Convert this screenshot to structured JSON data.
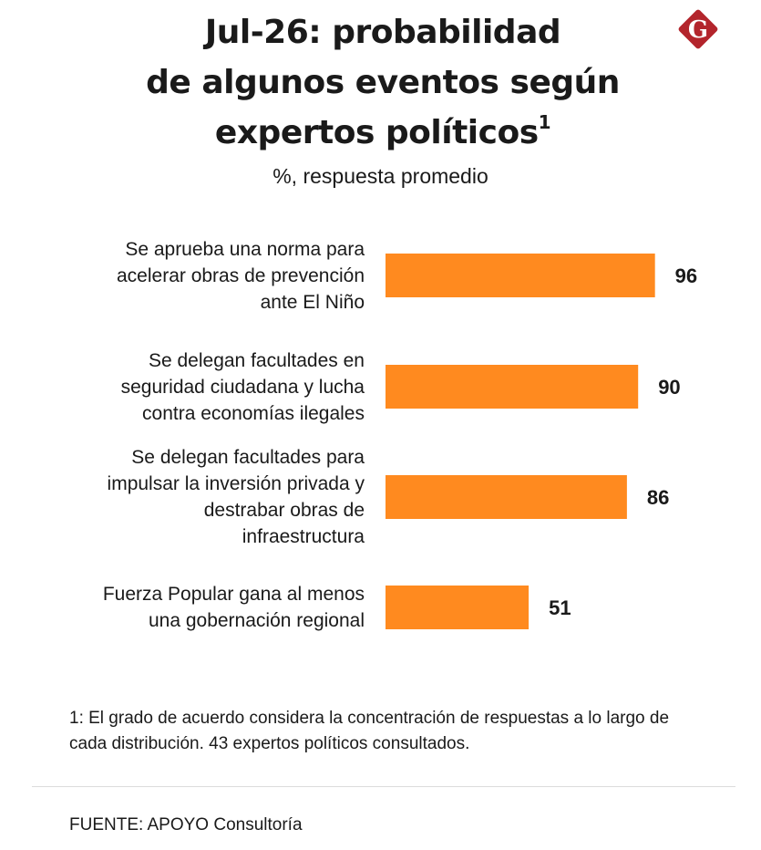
{
  "title_lines": [
    "Jul-26: probabilidad",
    "de algunos eventos según",
    "expertos políticos"
  ],
  "title_footnote_mark": "1",
  "subtitle": "%, respuesta promedio",
  "logo_letter": "G",
  "colors": {
    "bar": "#ff8a1f",
    "logo": "#b3252c",
    "text": "#1a1a1a"
  },
  "chart_data": {
    "type": "bar",
    "orientation": "horizontal",
    "categories": [
      [
        "Se aprueba una norma para",
        "acelerar obras de prevención",
        "ante El Niño"
      ],
      [
        "Se delegan facultades en",
        "seguridad ciudadana y lucha",
        "contra economías ilegales"
      ],
      [
        "Se delegan facultades para",
        "impulsar la inversión privada y",
        "destrabar obras de",
        "infraestructura"
      ],
      [
        "Fuerza Popular gana al menos",
        "una gobernación regional"
      ]
    ],
    "values": [
      96,
      90,
      86,
      51
    ],
    "data_labels": [
      "96",
      "90",
      "86",
      "51"
    ],
    "unit": "%",
    "xlim": [
      0,
      100
    ]
  },
  "footnote": "1:  El grado de acuerdo considera la concentración de respuestas a lo largo de cada distribución. 43 expertos políticos consultados.",
  "source": "FUENTE: APOYO Consultoría"
}
